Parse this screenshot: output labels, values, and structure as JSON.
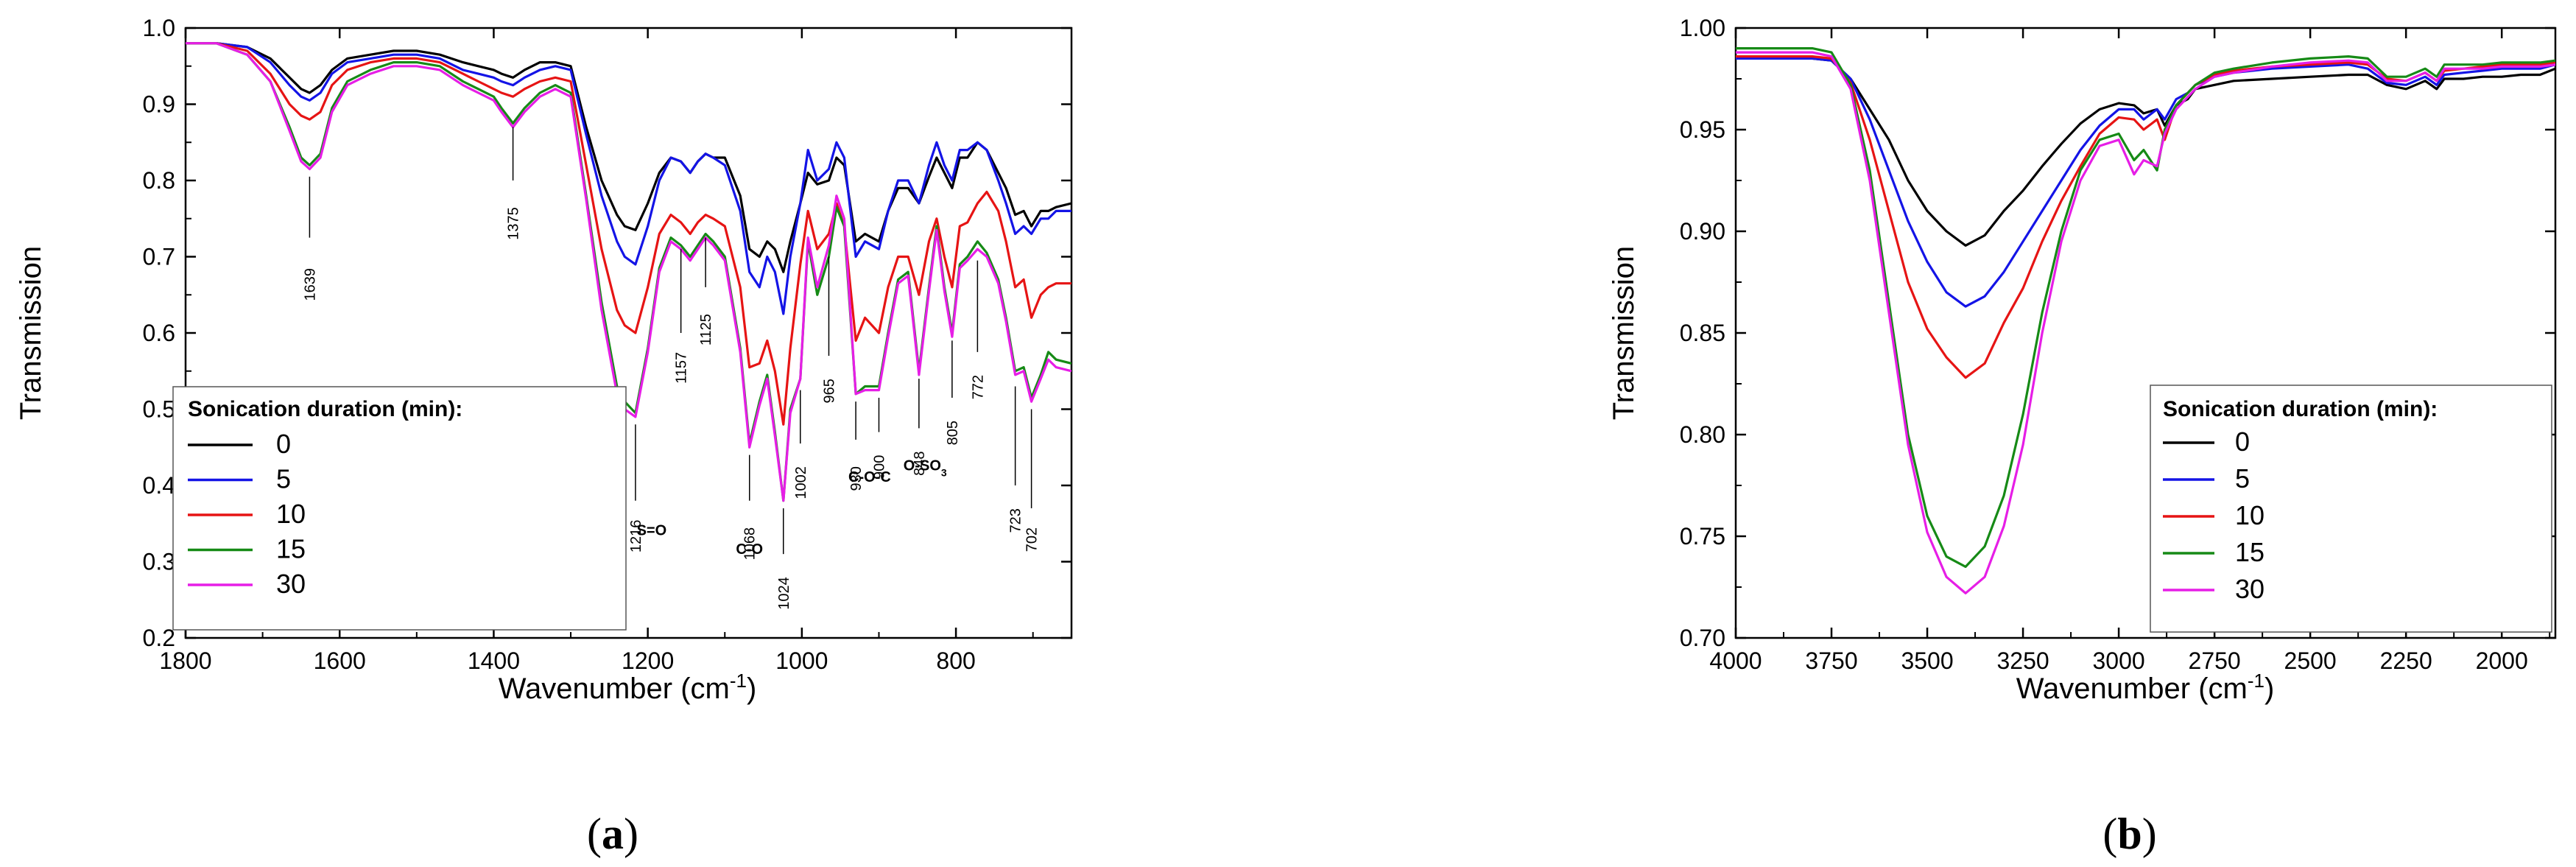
{
  "colors": {
    "s0": "#000000",
    "s5": "#1414e6",
    "s10": "#e61414",
    "s15": "#168a16",
    "s30": "#e61ee6"
  },
  "chart_data": [
    {
      "type": "line",
      "panel_label": "(a)",
      "xlabel": "Wavenumber (cm",
      "xlabel_sup": "-1",
      "xlabel_close": ")",
      "ylabel": "Transmission",
      "xlim": [
        1800,
        650
      ],
      "ylim": [
        0.2,
        1.0
      ],
      "x_ticks": [
        "1800",
        "1600",
        "1400",
        "1200",
        "1000",
        "800"
      ],
      "y_ticks": [
        "0.2",
        "0.3",
        "0.4",
        "0.5",
        "0.6",
        "0.7",
        "0.8",
        "0.9",
        "1.0"
      ],
      "legend_title": "Sonication duration (min):",
      "legend_position": "bottom-left",
      "x": [
        1800,
        1760,
        1720,
        1690,
        1665,
        1650,
        1639,
        1625,
        1610,
        1590,
        1560,
        1530,
        1500,
        1470,
        1440,
        1420,
        1400,
        1390,
        1375,
        1360,
        1340,
        1320,
        1300,
        1280,
        1260,
        1240,
        1230,
        1216,
        1200,
        1185,
        1170,
        1157,
        1145,
        1135,
        1125,
        1115,
        1100,
        1080,
        1068,
        1055,
        1045,
        1035,
        1024,
        1015,
        1002,
        992,
        980,
        965,
        955,
        945,
        930,
        918,
        900,
        888,
        875,
        862,
        848,
        835,
        825,
        815,
        805,
        795,
        785,
        772,
        760,
        745,
        735,
        723,
        712,
        702,
        690,
        680,
        670,
        650
      ],
      "series": [
        {
          "name": "0",
          "color_key": "s0",
          "values": [
            0.98,
            0.98,
            0.975,
            0.96,
            0.935,
            0.92,
            0.915,
            0.925,
            0.945,
            0.96,
            0.965,
            0.97,
            0.97,
            0.965,
            0.955,
            0.95,
            0.945,
            0.94,
            0.935,
            0.945,
            0.955,
            0.955,
            0.95,
            0.87,
            0.8,
            0.755,
            0.74,
            0.735,
            0.77,
            0.81,
            0.83,
            0.825,
            0.81,
            0.825,
            0.835,
            0.83,
            0.83,
            0.78,
            0.71,
            0.7,
            0.72,
            0.71,
            0.68,
            0.72,
            0.77,
            0.81,
            0.795,
            0.8,
            0.83,
            0.82,
            0.72,
            0.73,
            0.72,
            0.76,
            0.79,
            0.79,
            0.77,
            0.805,
            0.83,
            0.81,
            0.79,
            0.83,
            0.83,
            0.85,
            0.84,
            0.81,
            0.79,
            0.755,
            0.76,
            0.74,
            0.76,
            0.76,
            0.765,
            0.77
          ]
        },
        {
          "name": "5",
          "color_key": "s5",
          "values": [
            0.98,
            0.98,
            0.975,
            0.955,
            0.925,
            0.91,
            0.905,
            0.915,
            0.94,
            0.955,
            0.96,
            0.965,
            0.965,
            0.96,
            0.945,
            0.94,
            0.935,
            0.93,
            0.925,
            0.935,
            0.945,
            0.95,
            0.945,
            0.86,
            0.78,
            0.72,
            0.7,
            0.69,
            0.74,
            0.8,
            0.83,
            0.825,
            0.81,
            0.825,
            0.835,
            0.83,
            0.82,
            0.76,
            0.68,
            0.66,
            0.7,
            0.68,
            0.625,
            0.7,
            0.77,
            0.84,
            0.8,
            0.815,
            0.85,
            0.83,
            0.7,
            0.72,
            0.71,
            0.76,
            0.8,
            0.8,
            0.77,
            0.82,
            0.85,
            0.82,
            0.8,
            0.84,
            0.84,
            0.85,
            0.84,
            0.8,
            0.77,
            0.73,
            0.74,
            0.73,
            0.75,
            0.75,
            0.76,
            0.76
          ]
        },
        {
          "name": "10",
          "color_key": "s10",
          "values": [
            0.98,
            0.98,
            0.97,
            0.94,
            0.9,
            0.885,
            0.88,
            0.89,
            0.925,
            0.945,
            0.955,
            0.96,
            0.96,
            0.955,
            0.94,
            0.93,
            0.92,
            0.915,
            0.91,
            0.92,
            0.93,
            0.935,
            0.93,
            0.82,
            0.71,
            0.63,
            0.61,
            0.6,
            0.66,
            0.73,
            0.755,
            0.745,
            0.73,
            0.745,
            0.755,
            0.75,
            0.74,
            0.66,
            0.555,
            0.56,
            0.59,
            0.55,
            0.48,
            0.58,
            0.69,
            0.76,
            0.71,
            0.73,
            0.77,
            0.74,
            0.59,
            0.62,
            0.6,
            0.66,
            0.7,
            0.7,
            0.65,
            0.72,
            0.75,
            0.7,
            0.66,
            0.74,
            0.745,
            0.77,
            0.785,
            0.76,
            0.72,
            0.66,
            0.67,
            0.62,
            0.65,
            0.66,
            0.665,
            0.665
          ]
        },
        {
          "name": "15",
          "color_key": "s15",
          "values": [
            0.98,
            0.98,
            0.965,
            0.93,
            0.87,
            0.83,
            0.82,
            0.835,
            0.895,
            0.93,
            0.945,
            0.955,
            0.955,
            0.95,
            0.93,
            0.92,
            0.91,
            0.895,
            0.875,
            0.895,
            0.915,
            0.925,
            0.915,
            0.78,
            0.64,
            0.53,
            0.51,
            0.495,
            0.58,
            0.685,
            0.725,
            0.715,
            0.7,
            0.715,
            0.73,
            0.72,
            0.7,
            0.58,
            0.455,
            0.51,
            0.545,
            0.47,
            0.38,
            0.5,
            0.54,
            0.72,
            0.65,
            0.7,
            0.765,
            0.74,
            0.52,
            0.53,
            0.53,
            0.6,
            0.67,
            0.68,
            0.55,
            0.66,
            0.74,
            0.66,
            0.6,
            0.69,
            0.7,
            0.72,
            0.705,
            0.67,
            0.62,
            0.55,
            0.555,
            0.515,
            0.545,
            0.575,
            0.565,
            0.56
          ]
        },
        {
          "name": "30",
          "color_key": "s30",
          "values": [
            0.98,
            0.98,
            0.965,
            0.93,
            0.865,
            0.825,
            0.815,
            0.83,
            0.89,
            0.925,
            0.94,
            0.95,
            0.95,
            0.945,
            0.925,
            0.915,
            0.905,
            0.89,
            0.87,
            0.89,
            0.91,
            0.92,
            0.91,
            0.775,
            0.63,
            0.52,
            0.5,
            0.49,
            0.575,
            0.68,
            0.72,
            0.71,
            0.695,
            0.71,
            0.725,
            0.715,
            0.695,
            0.575,
            0.45,
            0.505,
            0.54,
            0.465,
            0.38,
            0.495,
            0.54,
            0.725,
            0.66,
            0.715,
            0.78,
            0.75,
            0.52,
            0.525,
            0.525,
            0.595,
            0.665,
            0.675,
            0.545,
            0.655,
            0.735,
            0.655,
            0.595,
            0.685,
            0.695,
            0.71,
            0.7,
            0.665,
            0.615,
            0.545,
            0.55,
            0.51,
            0.54,
            0.565,
            0.555,
            0.55
          ]
        }
      ],
      "annotations": [
        {
          "text": "1639",
          "x": 1639,
          "y_from": 0.805,
          "y_to": 0.725,
          "text_y": 0.685
        },
        {
          "text": "1375",
          "x": 1375,
          "y_from": 0.87,
          "y_to": 0.8,
          "text_y": 0.765
        },
        {
          "text": "1216",
          "x": 1216,
          "y_from": 0.48,
          "y_to": 0.38,
          "text_y": 0.355
        },
        {
          "text": "1157",
          "x": 1157,
          "y_from": 0.71,
          "y_to": 0.6,
          "text_y": 0.575
        },
        {
          "text": "1125",
          "x": 1125,
          "y_from": 0.725,
          "y_to": 0.66,
          "text_y": 0.625
        },
        {
          "text": "1068",
          "x": 1068,
          "y_from": 0.44,
          "y_to": 0.38,
          "text_y": 0.345
        },
        {
          "text": "1024",
          "x": 1024,
          "y_from": 0.37,
          "y_to": 0.31,
          "text_y": 0.28
        },
        {
          "text": "1002",
          "x": 1002,
          "y_from": 0.525,
          "y_to": 0.455,
          "text_y": 0.425
        },
        {
          "text": "965",
          "x": 965,
          "y_from": 0.7,
          "y_to": 0.57,
          "text_y": 0.54
        },
        {
          "text": "930",
          "x": 930,
          "y_from": 0.51,
          "y_to": 0.46,
          "text_y": 0.425
        },
        {
          "text": "900",
          "x": 900,
          "y_from": 0.515,
          "y_to": 0.47,
          "text_y": 0.44
        },
        {
          "text": "848",
          "x": 848,
          "y_from": 0.54,
          "y_to": 0.475,
          "text_y": 0.445
        },
        {
          "text": "805",
          "x": 805,
          "y_from": 0.59,
          "y_to": 0.515,
          "text_y": 0.485
        },
        {
          "text": "772",
          "x": 772,
          "y_from": 0.695,
          "y_to": 0.575,
          "text_y": 0.545
        },
        {
          "text": "723",
          "x": 723,
          "y_from": 0.53,
          "y_to": 0.4,
          "text_y": 0.37
        },
        {
          "text": "702",
          "x": 702,
          "y_from": 0.5,
          "y_to": 0.37,
          "text_y": 0.345
        }
      ],
      "group_labels": [
        {
          "text": "S=O",
          "x": 1195,
          "y": 0.335
        },
        {
          "text": "C-O",
          "x": 1068,
          "y": 0.31
        },
        {
          "text": "C-O-C",
          "x": 912,
          "y": 0.405
        },
        {
          "text": "O-SO",
          "sub": "3",
          "x": 840,
          "y": 0.42
        }
      ]
    },
    {
      "type": "line",
      "panel_label": "(b)",
      "xlabel": "Wavenumber (cm",
      "xlabel_sup": "-1",
      "xlabel_close": ")",
      "ylabel": "Transmission",
      "xlim": [
        4000,
        1860
      ],
      "ylim": [
        0.7,
        1.0
      ],
      "x_ticks": [
        "4000",
        "3750",
        "3500",
        "3250",
        "3000",
        "2750",
        "2500",
        "2250",
        "2000"
      ],
      "y_ticks": [
        "0.70",
        "0.75",
        "0.80",
        "0.85",
        "0.90",
        "0.95",
        "1.00"
      ],
      "legend_title": "Sonication duration (min):",
      "legend_position": "bottom-right",
      "x": [
        4000,
        3900,
        3800,
        3750,
        3700,
        3650,
        3600,
        3550,
        3500,
        3450,
        3400,
        3350,
        3300,
        3250,
        3200,
        3150,
        3100,
        3050,
        3000,
        2960,
        2935,
        2900,
        2880,
        2850,
        2820,
        2800,
        2750,
        2700,
        2600,
        2500,
        2400,
        2350,
        2300,
        2250,
        2200,
        2170,
        2150,
        2100,
        2050,
        2000,
        1950,
        1900,
        1860
      ],
      "series": [
        {
          "name": "0",
          "color_key": "s0",
          "values": [
            0.985,
            0.985,
            0.985,
            0.984,
            0.975,
            0.96,
            0.945,
            0.925,
            0.91,
            0.9,
            0.893,
            0.898,
            0.91,
            0.92,
            0.932,
            0.943,
            0.953,
            0.96,
            0.963,
            0.962,
            0.958,
            0.96,
            0.952,
            0.962,
            0.965,
            0.97,
            0.972,
            0.974,
            0.975,
            0.976,
            0.977,
            0.977,
            0.972,
            0.97,
            0.974,
            0.97,
            0.975,
            0.975,
            0.976,
            0.976,
            0.977,
            0.977,
            0.98
          ]
        },
        {
          "name": "5",
          "color_key": "s5",
          "values": [
            0.985,
            0.985,
            0.985,
            0.984,
            0.975,
            0.955,
            0.93,
            0.905,
            0.885,
            0.87,
            0.863,
            0.868,
            0.88,
            0.895,
            0.91,
            0.925,
            0.94,
            0.952,
            0.96,
            0.96,
            0.955,
            0.96,
            0.955,
            0.965,
            0.968,
            0.972,
            0.976,
            0.978,
            0.98,
            0.981,
            0.982,
            0.98,
            0.973,
            0.972,
            0.976,
            0.972,
            0.977,
            0.978,
            0.979,
            0.98,
            0.98,
            0.98,
            0.982
          ]
        },
        {
          "name": "10",
          "color_key": "s10",
          "values": [
            0.986,
            0.986,
            0.986,
            0.985,
            0.973,
            0.945,
            0.91,
            0.875,
            0.852,
            0.838,
            0.828,
            0.835,
            0.855,
            0.872,
            0.895,
            0.915,
            0.932,
            0.948,
            0.956,
            0.955,
            0.95,
            0.955,
            0.945,
            0.962,
            0.968,
            0.972,
            0.977,
            0.979,
            0.981,
            0.982,
            0.983,
            0.982,
            0.975,
            0.974,
            0.978,
            0.974,
            0.979,
            0.98,
            0.981,
            0.982,
            0.982,
            0.982,
            0.983
          ]
        },
        {
          "name": "15",
          "color_key": "s15",
          "values": [
            0.99,
            0.99,
            0.99,
            0.988,
            0.972,
            0.93,
            0.865,
            0.8,
            0.76,
            0.74,
            0.735,
            0.745,
            0.77,
            0.81,
            0.86,
            0.9,
            0.93,
            0.945,
            0.948,
            0.935,
            0.94,
            0.93,
            0.95,
            0.962,
            0.968,
            0.972,
            0.978,
            0.98,
            0.983,
            0.985,
            0.986,
            0.985,
            0.976,
            0.976,
            0.98,
            0.976,
            0.982,
            0.982,
            0.982,
            0.983,
            0.983,
            0.983,
            0.984
          ]
        },
        {
          "name": "30",
          "color_key": "s30",
          "values": [
            0.988,
            0.988,
            0.988,
            0.986,
            0.97,
            0.925,
            0.86,
            0.795,
            0.752,
            0.73,
            0.722,
            0.73,
            0.755,
            0.795,
            0.85,
            0.895,
            0.925,
            0.942,
            0.945,
            0.928,
            0.935,
            0.932,
            0.948,
            0.96,
            0.966,
            0.97,
            0.976,
            0.978,
            0.981,
            0.983,
            0.984,
            0.983,
            0.974,
            0.974,
            0.978,
            0.974,
            0.98,
            0.98,
            0.98,
            0.981,
            0.981,
            0.981,
            0.982
          ]
        }
      ]
    }
  ]
}
